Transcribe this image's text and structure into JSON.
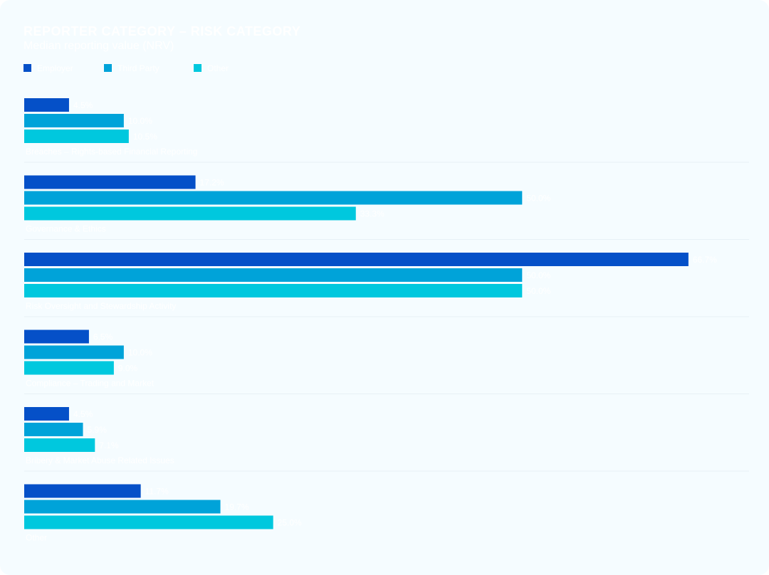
{
  "chart_data": {
    "type": "bar",
    "orientation": "horizontal",
    "title": "REPORTER CATEGORY – RISK CATEGORY",
    "subtitle": "Median reporting value (NRV)",
    "categories": [
      "Breaches – Rights-based Financial Reporting",
      "Governance & Ethics",
      "Risk Oversight and Stewardship Activity",
      "Compliance – Trading and Market",
      "Bribery & Market Abuse Related Issues",
      "Other"
    ],
    "series": [
      {
        "name": "Employer",
        "color": "#0550c8",
        "values": [
          4.5,
          17.2,
          66.7,
          6.5,
          4.5,
          11.7
        ]
      },
      {
        "name": "Third Party",
        "color": "#00a3d9",
        "values": [
          10.0,
          50.0,
          50.0,
          10.0,
          5.9,
          19.7
        ]
      },
      {
        "name": "Other",
        "color": "#00c8de",
        "values": [
          10.5,
          33.3,
          50.0,
          9.0,
          7.1,
          25.0
        ]
      }
    ],
    "value_labels": [
      [
        "4.5%",
        "10.0%",
        "10.5%"
      ],
      [
        "17.2%",
        "50.0%",
        "33.3%"
      ],
      [
        "66.7%",
        "50.0%",
        "50.0%"
      ],
      [
        "6.5%",
        "10.0%",
        "9.0%"
      ],
      [
        "4.5%",
        "5.9%",
        "7.1%"
      ],
      [
        "11.7%",
        "19.7%",
        "25.0%"
      ]
    ],
    "xlim": [
      0,
      72
    ],
    "grid": false,
    "legend_position": "top-left"
  }
}
